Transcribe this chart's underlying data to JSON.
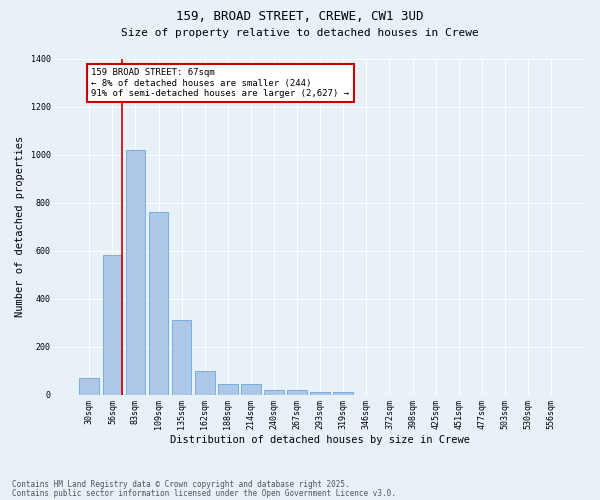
{
  "title1": "159, BROAD STREET, CREWE, CW1 3UD",
  "title2": "Size of property relative to detached houses in Crewe",
  "xlabel": "Distribution of detached houses by size in Crewe",
  "ylabel": "Number of detached properties",
  "categories": [
    "30sqm",
    "56sqm",
    "83sqm",
    "109sqm",
    "135sqm",
    "162sqm",
    "188sqm",
    "214sqm",
    "240sqm",
    "267sqm",
    "293sqm",
    "319sqm",
    "346sqm",
    "372sqm",
    "398sqm",
    "425sqm",
    "451sqm",
    "477sqm",
    "503sqm",
    "530sqm",
    "556sqm"
  ],
  "values": [
    70,
    580,
    1020,
    760,
    310,
    100,
    45,
    45,
    20,
    20,
    10,
    10,
    0,
    0,
    0,
    0,
    0,
    0,
    0,
    0,
    0
  ],
  "bar_color": "#aec6e8",
  "bar_edge_color": "#5a9fd4",
  "ylim": [
    0,
    1400
  ],
  "yticks": [
    0,
    200,
    400,
    600,
    800,
    1000,
    1200,
    1400
  ],
  "property_line_x": 1.42,
  "property_line_color": "#cc0000",
  "annotation_text": "159 BROAD STREET: 67sqm\n← 8% of detached houses are smaller (244)\n91% of semi-detached houses are larger (2,627) →",
  "annotation_box_color": "#cc0000",
  "footer1": "Contains HM Land Registry data © Crown copyright and database right 2025.",
  "footer2": "Contains public sector information licensed under the Open Government Licence v3.0.",
  "bg_color": "#e8f0f8",
  "plot_bg_color": "#e8f0f8",
  "grid_color": "#ffffff",
  "title_fontsize": 9,
  "subtitle_fontsize": 8,
  "tick_fontsize": 6,
  "ylabel_fontsize": 7.5,
  "xlabel_fontsize": 7.5,
  "footer_fontsize": 5.5,
  "annotation_fontsize": 6.5
}
